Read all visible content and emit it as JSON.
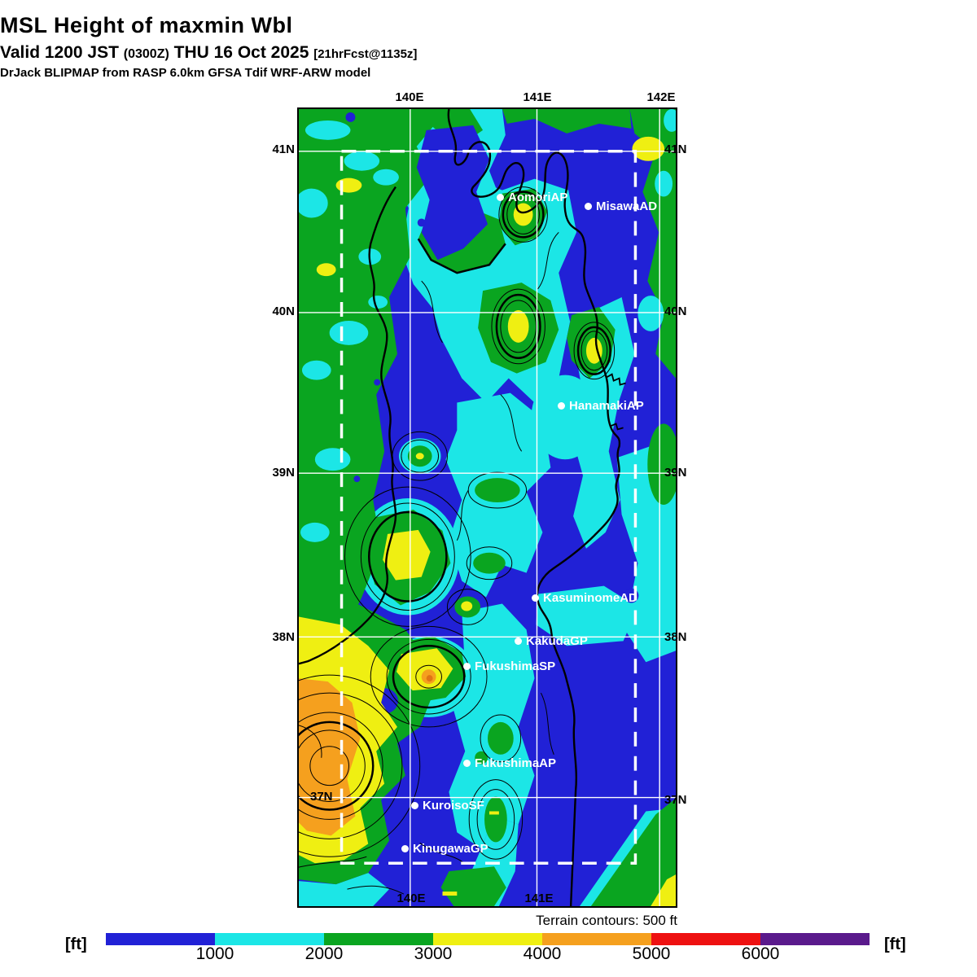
{
  "header": {
    "title": "MSL Height of maxmin Wbl",
    "valid_prefix": "Valid 1200 JST ",
    "valid_zulu": "(0300Z)",
    "valid_date": " THU 16 Oct 2025 ",
    "forecast_tag": "[21hrFcst@1135z]",
    "model_line": "DrJack BLIPMAP from RASP 6.0km GFSA Tdif WRF-ARW model"
  },
  "map": {
    "top_lon_labels": [
      "140E",
      "141E",
      "142E"
    ],
    "bottom_lon_labels": [
      "140E",
      "141E"
    ],
    "left_lat_labels": [
      "41N",
      "40N",
      "39N",
      "38N"
    ],
    "right_lat_labels": [
      "41N",
      "40N",
      "39N",
      "38N",
      "37N"
    ],
    "inland_lat_label": "37N",
    "stations": [
      {
        "name": "AomoriAP"
      },
      {
        "name": "MisawaAD"
      },
      {
        "name": "HanamakiAP"
      },
      {
        "name": "KasuminomeAD"
      },
      {
        "name": "KakudaGP"
      },
      {
        "name": "FukushimaSP"
      },
      {
        "name": "FukushimaAP"
      },
      {
        "name": "KuroisoSF"
      },
      {
        "name": "KinugawaGP"
      }
    ]
  },
  "footer": {
    "terrain_note": "Terrain contours: 500 ft"
  },
  "colorbar": {
    "unit_left": "[ft]",
    "unit_right": "[ft]",
    "ticks": [
      "1000",
      "2000",
      "3000",
      "4000",
      "5000",
      "6000"
    ],
    "colors": [
      "#2121d6",
      "#1ce6e6",
      "#0aa520",
      "#efef12",
      "#f5a01e",
      "#ee1111",
      "#5a1a8c"
    ]
  },
  "palette": {
    "level_blue": "#2121d6",
    "level_cyan": "#1ce6e6",
    "level_green": "#0aa520",
    "level_yellow": "#efef12",
    "level_orange": "#f5a01e",
    "level_orange_core": "#e07414",
    "grid_white": "#ffffff",
    "contour_black": "#000000"
  }
}
